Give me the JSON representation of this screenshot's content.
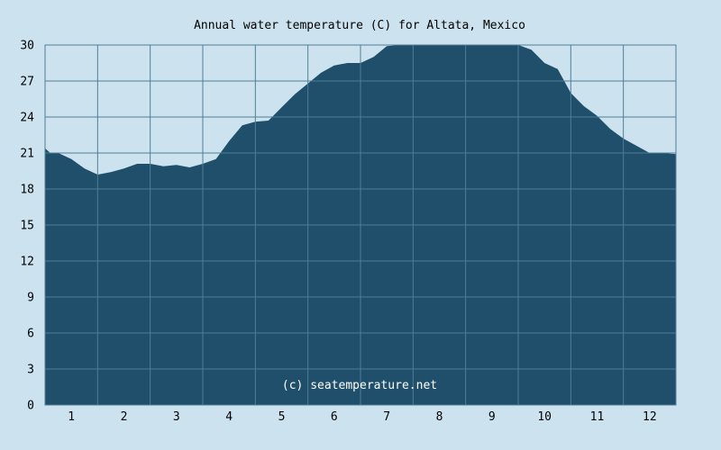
{
  "chart_data": {
    "type": "area",
    "title": "Annual water temperature (C) for Altata, Mexico",
    "xlabel": "",
    "ylabel": "",
    "ylim": [
      0,
      30
    ],
    "yticks": [
      "0",
      "3",
      "6",
      "9",
      "12",
      "15",
      "18",
      "21",
      "24",
      "27",
      "30"
    ],
    "xlim": [
      0.5,
      12.5
    ],
    "xticks": [
      "1",
      "2",
      "3",
      "4",
      "5",
      "6",
      "7",
      "8",
      "9",
      "10",
      "11",
      "12"
    ],
    "grid": true,
    "credit": "(c) seatemperature.net",
    "colors": {
      "fill": "#1f4f6a",
      "grid": "#4f7e96",
      "background": "#cce3ef"
    },
    "x": [
      0.5,
      0.6,
      0.75,
      1.0,
      1.25,
      1.5,
      1.75,
      2.0,
      2.25,
      2.5,
      2.75,
      3.0,
      3.25,
      3.5,
      3.75,
      4.0,
      4.25,
      4.5,
      4.75,
      5.0,
      5.25,
      5.5,
      5.75,
      6.0,
      6.25,
      6.5,
      6.75,
      7.0,
      7.25,
      7.5,
      7.75,
      8.0,
      8.25,
      8.5,
      8.75,
      9.0,
      9.25,
      9.5,
      9.75,
      10.0,
      10.25,
      10.5,
      10.75,
      11.0,
      11.25,
      11.5,
      11.75,
      12.0,
      12.25,
      12.5
    ],
    "y": [
      21.4,
      21.0,
      21.0,
      20.5,
      19.7,
      19.2,
      19.4,
      19.7,
      20.1,
      20.1,
      19.9,
      20.0,
      19.8,
      20.1,
      20.5,
      22.0,
      23.3,
      23.6,
      23.7,
      24.8,
      25.9,
      26.8,
      27.7,
      28.3,
      28.5,
      28.5,
      29.0,
      29.9,
      30.6,
      30.8,
      31.0,
      31.1,
      30.9,
      30.7,
      30.4,
      30.1,
      30.3,
      30.2,
      29.6,
      28.5,
      28.0,
      26.0,
      24.9,
      24.1,
      23.0,
      22.2,
      21.6,
      21.0,
      21.0,
      20.9
    ]
  }
}
